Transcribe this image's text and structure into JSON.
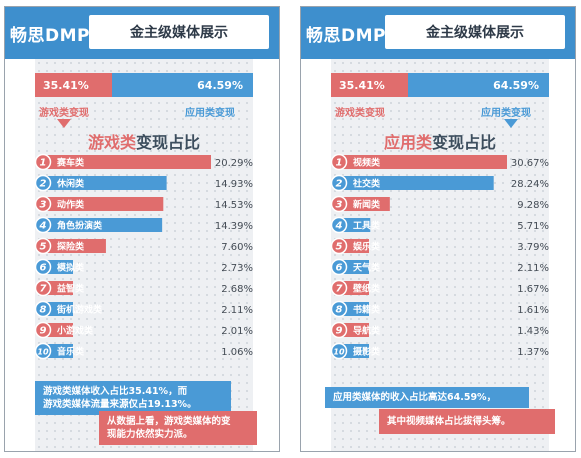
{
  "brand": "畅思DMP",
  "header_title": "金主级媒体展示",
  "colors": {
    "red": "#e06d6d",
    "blue": "#4a9ad6",
    "header": "#3e8fcd"
  },
  "split": {
    "games_pct": "35.41%",
    "apps_pct": "64.59%",
    "games_share": 35.41,
    "apps_share": 64.59,
    "games_label": "游戏类变现",
    "apps_label": "应用类变现"
  },
  "chart_data": [
    {
      "type": "bar",
      "orientation": "horizontal",
      "title": "游戏类变现占比",
      "title_highlight": "游戏类",
      "title_rest": "变现占比",
      "categories": [
        "赛车类",
        "休闲类",
        "动作类",
        "角色扮演类",
        "探险类",
        "模拟类",
        "益智类",
        "街机游戏类",
        "小游戏类",
        "音乐类"
      ],
      "values": [
        20.29,
        14.93,
        14.53,
        14.39,
        7.6,
        2.73,
        2.68,
        2.11,
        2.01,
        1.06
      ],
      "value_labels": [
        "20.29%",
        "14.93%",
        "14.53%",
        "14.39%",
        "7.60%",
        "2.73%",
        "2.68%",
        "2.11%",
        "2.01%",
        "1.06%"
      ],
      "ranks": [
        "1",
        "2",
        "3",
        "4",
        "5",
        "6",
        "7",
        "8",
        "9",
        "10"
      ],
      "bar_colors": [
        "red",
        "blue",
        "red",
        "blue",
        "red",
        "blue",
        "red",
        "blue",
        "red",
        "blue"
      ]
    },
    {
      "type": "bar",
      "orientation": "horizontal",
      "title": "应用类变现占比",
      "title_highlight": "应用类",
      "title_rest": "变现占比",
      "categories": [
        "视频类",
        "社交类",
        "新闻类",
        "工具类",
        "娱乐类",
        "天气类",
        "壁纸类",
        "书籍类",
        "导航类",
        "摄影类"
      ],
      "values": [
        30.67,
        28.24,
        9.28,
        5.71,
        3.79,
        2.11,
        1.67,
        1.61,
        1.43,
        1.37
      ],
      "value_labels": [
        "30.67%",
        "28.24%",
        "9.28%",
        "5.71%",
        "3.79%",
        "2.11%",
        "1.67%",
        "1.61%",
        "1.43%",
        "1.37%"
      ],
      "ranks": [
        "1",
        "2",
        "3",
        "4",
        "5",
        "6",
        "7",
        "8",
        "9",
        "10"
      ],
      "bar_colors": [
        "red",
        "blue",
        "red",
        "blue",
        "red",
        "blue",
        "red",
        "blue",
        "red",
        "blue"
      ]
    }
  ],
  "notes_left": {
    "blue_line1": "游戏类媒体收入占比35.41%，而",
    "blue_line2": "游戏类媒体流量来源仅占19.13%。",
    "red_line1": "从数据上看，游戏类媒体的变",
    "red_line2": "现能力依然实力派。"
  },
  "notes_right": {
    "blue_line1": "应用类媒体的收入占比高达64.59%，",
    "red_line1": "其中视频媒体占比拔得头筹。"
  }
}
